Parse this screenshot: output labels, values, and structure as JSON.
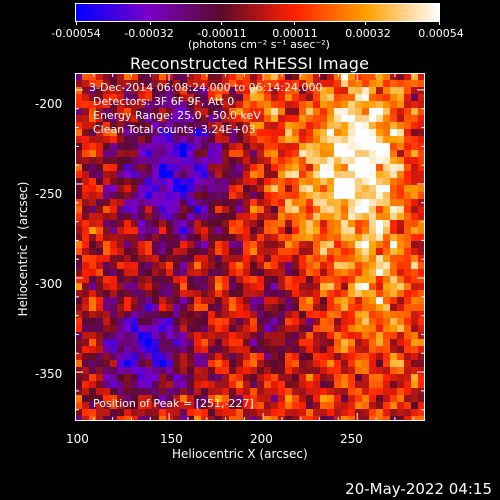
{
  "colorbar": {
    "labels": [
      "-0.00054",
      "-0.00032",
      "-0.00011",
      "0.00011",
      "0.00032",
      "0.00054"
    ],
    "values": [
      -0.00054,
      -0.00032,
      -0.00011,
      0.00011,
      0.00032,
      0.00054
    ],
    "unit_label": "(photons cm⁻² s⁻¹ asec⁻²)",
    "colors": [
      "#0000ff",
      "#7a00c8",
      "#5a0a2a",
      "#ff2000",
      "#ffa000",
      "#ffffff"
    ]
  },
  "chart_data": {
    "type": "heatmap",
    "title": "Reconstructed RHESSI Image",
    "xlabel": "Heliocentric X (arcsec)",
    "ylabel": "Heliocentric Y (arcsec)",
    "xlim": [
      100,
      286
    ],
    "ylim": [
      -376,
      -191
    ],
    "x_ticks": [
      100,
      150,
      200,
      250
    ],
    "y_ticks": [
      -200,
      -250,
      -300,
      -350
    ],
    "annotations": [
      "3-Dec-2014 06:08:24.000 to 06:14:24.000",
      "Detectors: 3F 6F 9F, Att 0",
      "Energy Range: 25.0 - 50.0 keV",
      "Clean     Total counts: 3.24E+03"
    ],
    "peak_label": "Position of Peak = [251,-227]",
    "peak": [
      251,
      -227
    ],
    "colorbar_range": [
      -0.00054,
      0.00054
    ]
  },
  "footer": {
    "timestamp": "20-May-2022 04:15"
  }
}
